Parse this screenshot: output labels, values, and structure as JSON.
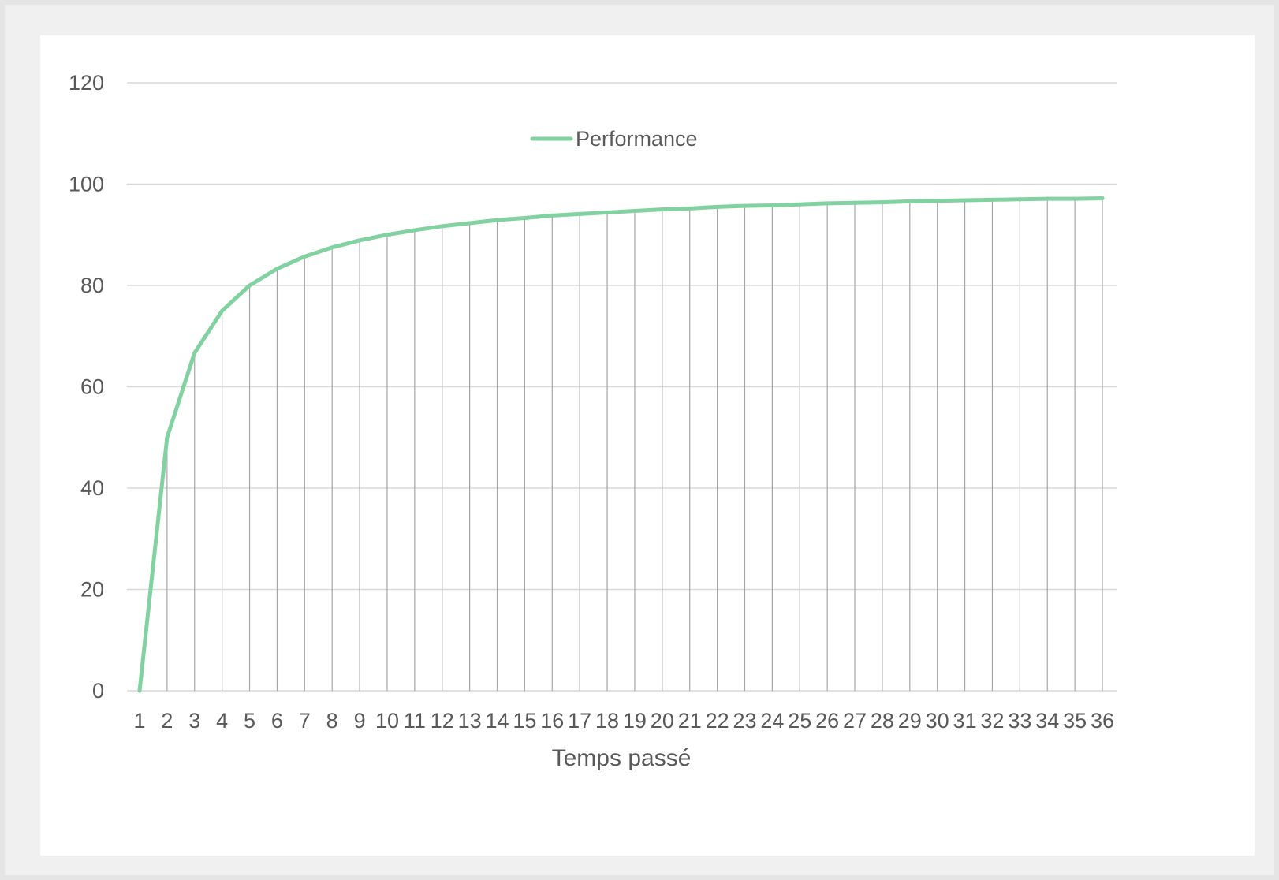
{
  "chart_data": {
    "type": "line",
    "title": "",
    "xlabel": "Temps passé",
    "ylabel": "",
    "categories": [
      "1",
      "2",
      "3",
      "4",
      "5",
      "6",
      "7",
      "8",
      "9",
      "10",
      "11",
      "12",
      "13",
      "14",
      "15",
      "16",
      "17",
      "18",
      "19",
      "20",
      "21",
      "22",
      "23",
      "24",
      "25",
      "26",
      "27",
      "28",
      "29",
      "30",
      "31",
      "32",
      "33",
      "34",
      "35",
      "36"
    ],
    "series": [
      {
        "name": "Performance",
        "color": "#82d2a1",
        "values": [
          0,
          50,
          66.7,
          75,
          80,
          83.3,
          85.7,
          87.5,
          88.9,
          90,
          90.9,
          91.7,
          92.3,
          92.9,
          93.3,
          93.8,
          94.1,
          94.4,
          94.7,
          95,
          95.2,
          95.5,
          95.7,
          95.8,
          96,
          96.2,
          96.3,
          96.4,
          96.6,
          96.7,
          96.8,
          96.9,
          97,
          97.1,
          97.1,
          97.2
        ]
      }
    ],
    "ylim": [
      0,
      120
    ],
    "yticks": [
      0,
      20,
      40,
      60,
      80,
      100,
      120
    ],
    "grid": {
      "horizontal": true,
      "vertical_drop_lines": true
    },
    "legend": "top-center",
    "colors": {
      "grid": "#d9d9d9",
      "drop_lines": "#a6a6a6",
      "text": "#595959"
    }
  }
}
